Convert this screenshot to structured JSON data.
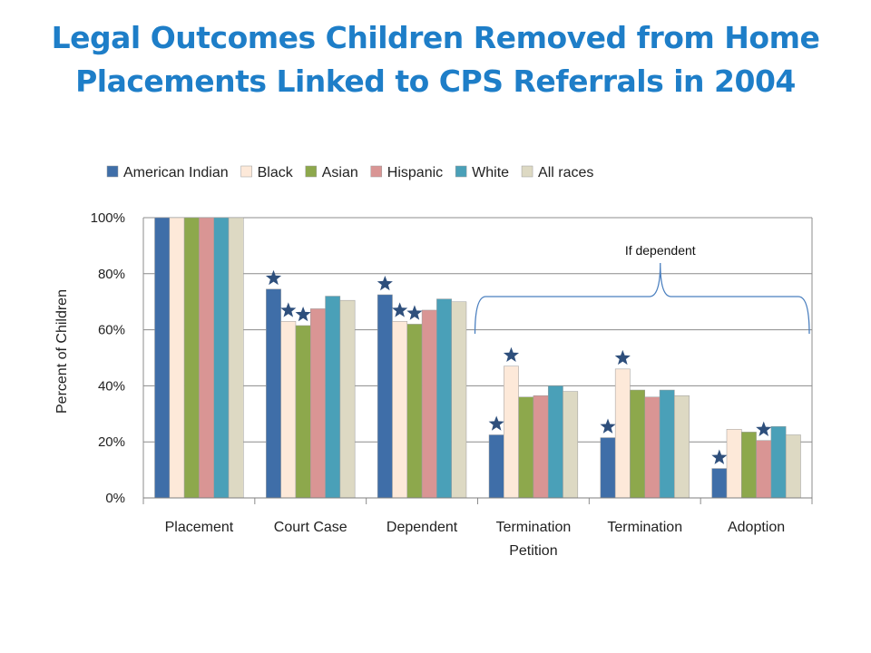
{
  "title_lines": [
    "Legal Outcomes Children Removed from Home",
    "Placements Linked to CPS Referrals in 2004"
  ],
  "chart_data": {
    "type": "bar",
    "title": "Legal Outcomes Children Removed from Home Placements Linked to CPS Referrals in 2004",
    "ylabel": "Percent of Children",
    "xlabel": "",
    "ylim": [
      0,
      100
    ],
    "y_ticks": [
      0,
      20,
      40,
      60,
      80,
      100
    ],
    "y_tick_labels": [
      "0%",
      "20%",
      "40%",
      "60%",
      "80%",
      "100%"
    ],
    "grid": true,
    "legend_position": "top",
    "categories": [
      [
        "Placement"
      ],
      [
        "Court Case"
      ],
      [
        "Dependent"
      ],
      [
        "Termination",
        "Petition"
      ],
      [
        "Termination"
      ],
      [
        "Adoption"
      ]
    ],
    "series": [
      {
        "name": "American Indian",
        "color": "#3f6ea8",
        "values": [
          100,
          74.5,
          72.5,
          22.5,
          21.5,
          10.5
        ]
      },
      {
        "name": "Black",
        "color": "#fde9d9",
        "values": [
          100,
          63,
          63,
          47,
          46,
          24.5
        ]
      },
      {
        "name": "Asian",
        "color": "#8da84c",
        "values": [
          100,
          61.5,
          62,
          36,
          38.5,
          23.5
        ]
      },
      {
        "name": "Hispanic",
        "color": "#d99594",
        "values": [
          100,
          67.5,
          67,
          36.5,
          36,
          20.5
        ]
      },
      {
        "name": "White",
        "color": "#4aa0b8",
        "values": [
          100,
          72,
          71,
          40,
          38.5,
          25.5
        ]
      },
      {
        "name": "All races",
        "color": "#ddd9c3",
        "values": [
          100,
          70.5,
          70,
          38,
          36.5,
          22.5
        ]
      }
    ],
    "significance_markers": [
      {
        "category": 1,
        "series": 0
      },
      {
        "category": 1,
        "series": 1
      },
      {
        "category": 1,
        "series": 2
      },
      {
        "category": 2,
        "series": 0
      },
      {
        "category": 2,
        "series": 1
      },
      {
        "category": 2,
        "series": 2
      },
      {
        "category": 3,
        "series": 0
      },
      {
        "category": 3,
        "series": 1
      },
      {
        "category": 4,
        "series": 0
      },
      {
        "category": 4,
        "series": 1
      },
      {
        "category": 5,
        "series": 0
      },
      {
        "category": 5,
        "series": 3
      }
    ],
    "marker_color": "#2e4f7c",
    "annotation": {
      "text": "If dependent",
      "spans_categories": [
        3,
        5
      ]
    }
  }
}
